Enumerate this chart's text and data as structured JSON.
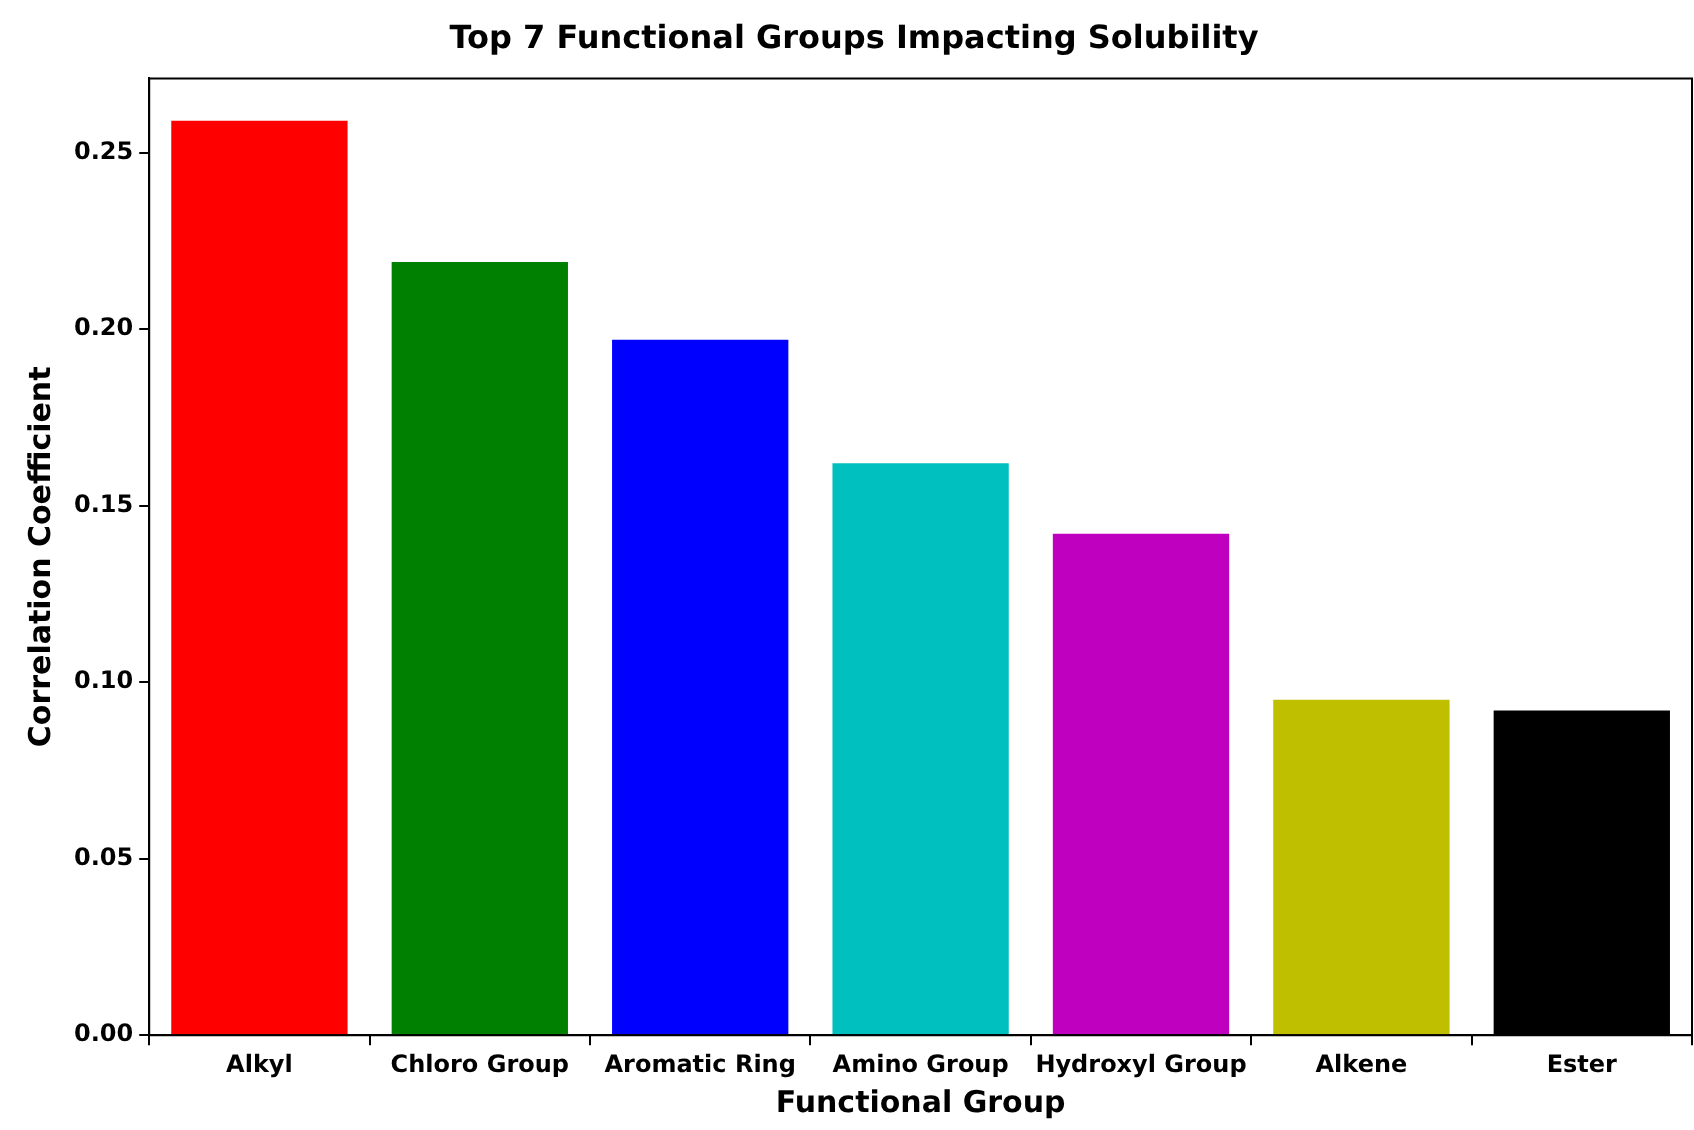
{
  "chart_data": {
    "type": "bar",
    "title": "Top 7 Functional Groups Impacting Solubility",
    "xlabel": "Functional Group",
    "ylabel": "Correlation Coefficient",
    "categories": [
      "Alkyl",
      "Chloro Group",
      "Aromatic Ring",
      "Amino Group",
      "Hydroxyl Group",
      "Alkene",
      "Ester"
    ],
    "values": [
      0.259,
      0.219,
      0.197,
      0.162,
      0.142,
      0.095,
      0.092
    ],
    "colors": [
      "#ff0000",
      "#008000",
      "#0000ff",
      "#00bfbf",
      "#bf00bf",
      "#bfbf00",
      "#000000"
    ],
    "ylim": [
      0,
      0.271
    ],
    "yticks": [
      {
        "value": 0,
        "label": "0.00"
      },
      {
        "value": 0.05,
        "label": "0.05"
      },
      {
        "value": 0.1,
        "label": "0.10"
      },
      {
        "value": 0.15,
        "label": "0.15"
      },
      {
        "value": 0.2,
        "label": "0.20"
      },
      {
        "value": 0.25,
        "label": "0.25"
      }
    ],
    "grid": false,
    "legend": false
  }
}
